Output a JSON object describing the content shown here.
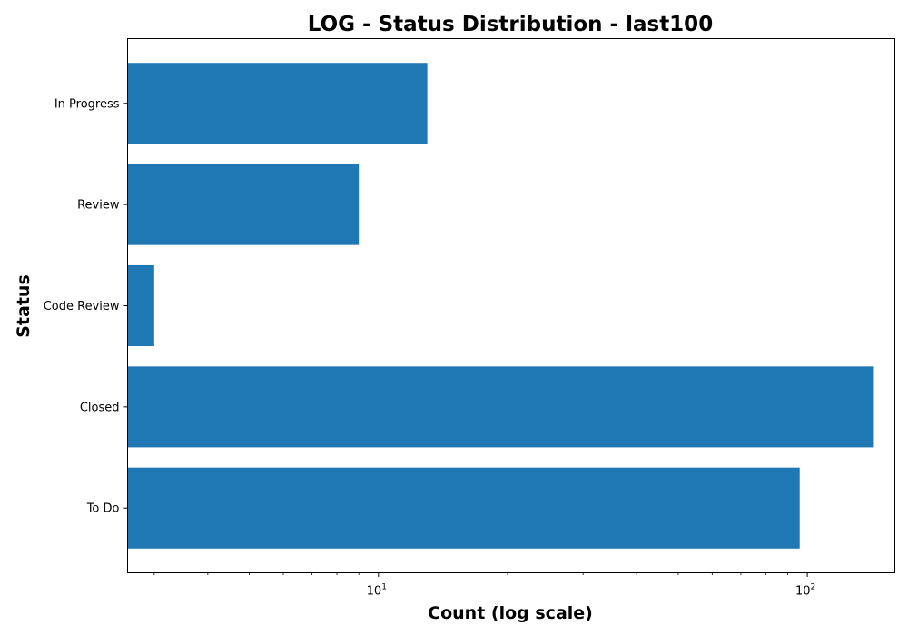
{
  "chart_data": {
    "type": "bar",
    "orientation": "horizontal",
    "title": "LOG - Status Distribution - last100",
    "xlabel": "Count (log scale)",
    "ylabel": "Status",
    "xscale": "log",
    "xlim": [
      2.6,
      160
    ],
    "categories": [
      "In Progress",
      "Review",
      "Code Review",
      "Closed",
      "To Do"
    ],
    "values": [
      13,
      9,
      3,
      143,
      96
    ],
    "x_major_ticks": [
      {
        "base": "10",
        "exp": "1",
        "value": 10
      },
      {
        "base": "10",
        "exp": "2",
        "value": 100
      }
    ],
    "bar_color": "#1f77b4",
    "grid": false,
    "legend": "none"
  }
}
